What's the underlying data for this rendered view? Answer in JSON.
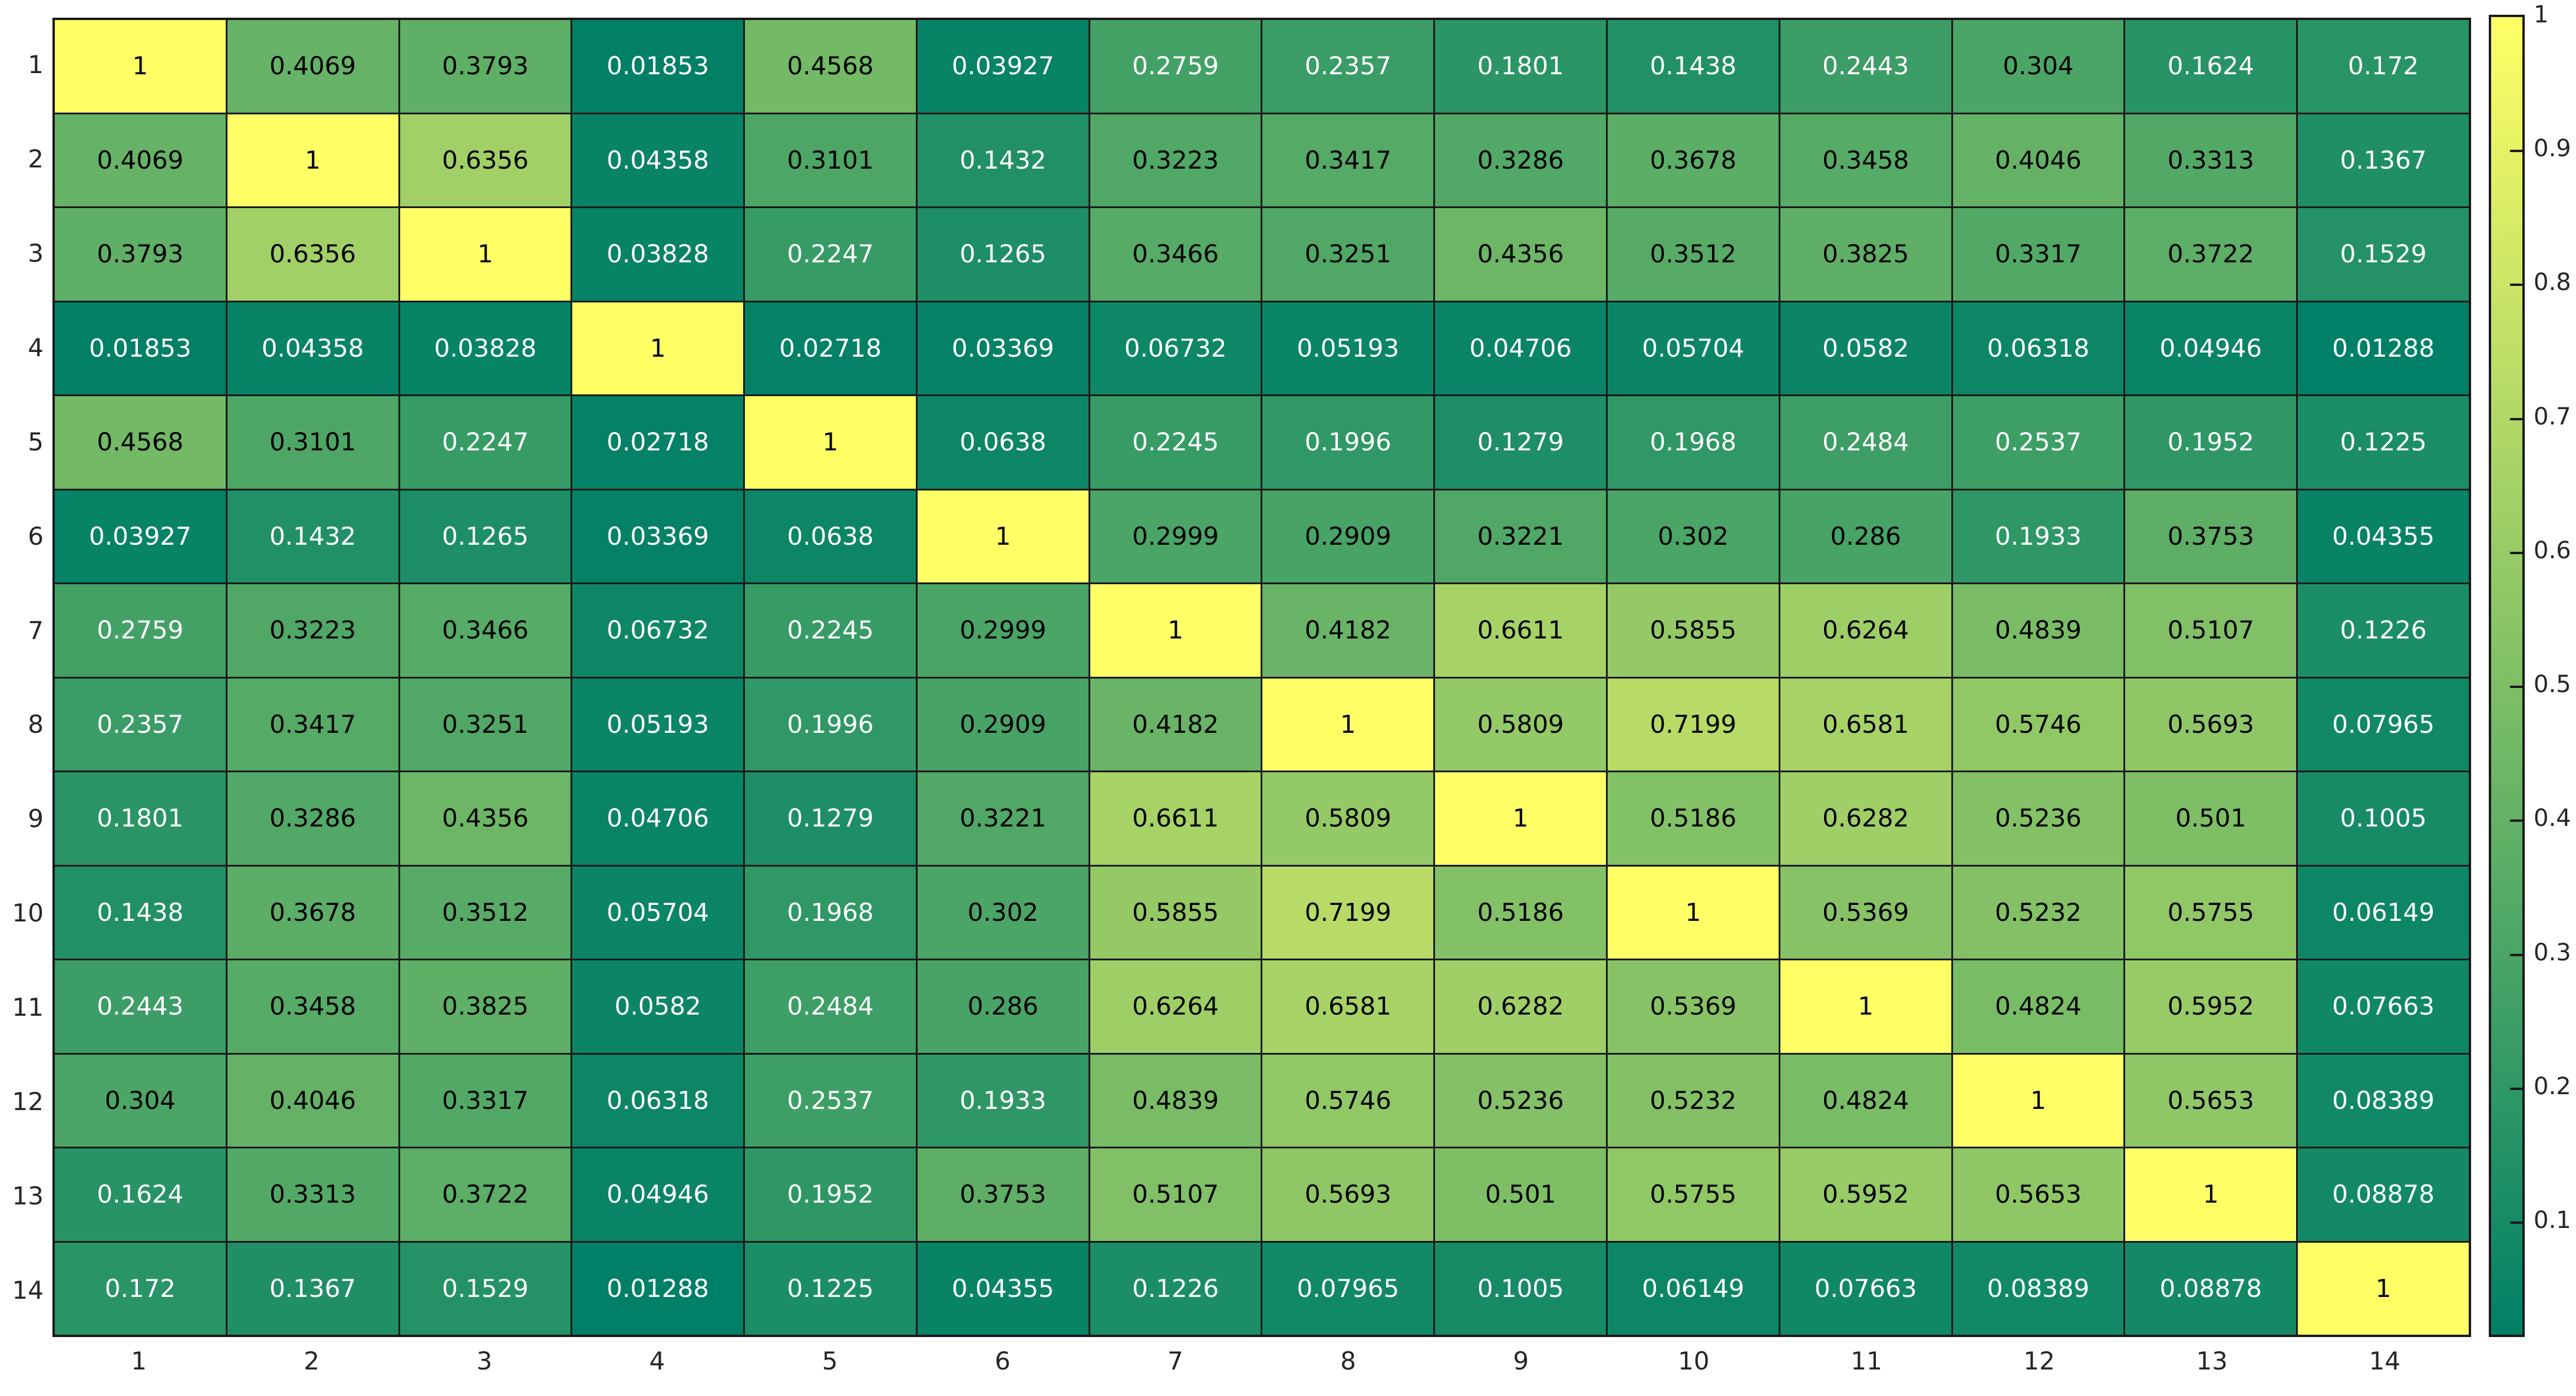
{
  "figure": {
    "background": "#ffffff",
    "grid_line_color": "#1a1a1a",
    "tick_label_color": "#262626",
    "annotation_color_dark": "#000000",
    "annotation_color_light": "#ffffff"
  },
  "chart_data": {
    "type": "heatmap",
    "title": "",
    "xlabel": "",
    "ylabel": "",
    "grid": true,
    "legend_position": "colorbar-right",
    "categories_x": [
      "1",
      "2",
      "3",
      "4",
      "5",
      "6",
      "7",
      "8",
      "9",
      "10",
      "11",
      "12",
      "13",
      "14"
    ],
    "categories_y": [
      "1",
      "2",
      "3",
      "4",
      "5",
      "6",
      "7",
      "8",
      "9",
      "10",
      "11",
      "12",
      "13",
      "14"
    ],
    "matrix": [
      [
        "1",
        "0.4069",
        "0.3793",
        "0.01853",
        "0.4568",
        "0.03927",
        "0.2759",
        "0.2357",
        "0.1801",
        "0.1438",
        "0.2443",
        "0.304",
        "0.1624",
        "0.172"
      ],
      [
        "0.4069",
        "1",
        "0.6356",
        "0.04358",
        "0.3101",
        "0.1432",
        "0.3223",
        "0.3417",
        "0.3286",
        "0.3678",
        "0.3458",
        "0.4046",
        "0.3313",
        "0.1367"
      ],
      [
        "0.3793",
        "0.6356",
        "1",
        "0.03828",
        "0.2247",
        "0.1265",
        "0.3466",
        "0.3251",
        "0.4356",
        "0.3512",
        "0.3825",
        "0.3317",
        "0.3722",
        "0.1529"
      ],
      [
        "0.01853",
        "0.04358",
        "0.03828",
        "1",
        "0.02718",
        "0.03369",
        "0.06732",
        "0.05193",
        "0.04706",
        "0.05704",
        "0.0582",
        "0.06318",
        "0.04946",
        "0.01288"
      ],
      [
        "0.4568",
        "0.3101",
        "0.2247",
        "0.02718",
        "1",
        "0.0638",
        "0.2245",
        "0.1996",
        "0.1279",
        "0.1968",
        "0.2484",
        "0.2537",
        "0.1952",
        "0.1225"
      ],
      [
        "0.03927",
        "0.1432",
        "0.1265",
        "0.03369",
        "0.0638",
        "1",
        "0.2999",
        "0.2909",
        "0.3221",
        "0.302",
        "0.286",
        "0.1933",
        "0.3753",
        "0.04355"
      ],
      [
        "0.2759",
        "0.3223",
        "0.3466",
        "0.06732",
        "0.2245",
        "0.2999",
        "1",
        "0.4182",
        "0.6611",
        "0.5855",
        "0.6264",
        "0.4839",
        "0.5107",
        "0.1226"
      ],
      [
        "0.2357",
        "0.3417",
        "0.3251",
        "0.05193",
        "0.1996",
        "0.2909",
        "0.4182",
        "1",
        "0.5809",
        "0.7199",
        "0.6581",
        "0.5746",
        "0.5693",
        "0.07965"
      ],
      [
        "0.1801",
        "0.3286",
        "0.4356",
        "0.04706",
        "0.1279",
        "0.3221",
        "0.6611",
        "0.5809",
        "1",
        "0.5186",
        "0.6282",
        "0.5236",
        "0.501",
        "0.1005"
      ],
      [
        "0.1438",
        "0.3678",
        "0.3512",
        "0.05704",
        "0.1968",
        "0.302",
        "0.5855",
        "0.7199",
        "0.5186",
        "1",
        "0.5369",
        "0.5232",
        "0.5755",
        "0.06149"
      ],
      [
        "0.2443",
        "0.3458",
        "0.3825",
        "0.0582",
        "0.2484",
        "0.286",
        "0.6264",
        "0.6581",
        "0.6282",
        "0.5369",
        "1",
        "0.4824",
        "0.5952",
        "0.07663"
      ],
      [
        "0.304",
        "0.4046",
        "0.3317",
        "0.06318",
        "0.2537",
        "0.1933",
        "0.4839",
        "0.5746",
        "0.5236",
        "0.5232",
        "0.4824",
        "1",
        "0.5653",
        "0.08389"
      ],
      [
        "0.1624",
        "0.3313",
        "0.3722",
        "0.04946",
        "0.1952",
        "0.3753",
        "0.5107",
        "0.5693",
        "0.501",
        "0.5755",
        "0.5952",
        "0.5653",
        "1",
        "0.08878"
      ],
      [
        "0.172",
        "0.1367",
        "0.1529",
        "0.01288",
        "0.1225",
        "0.04355",
        "0.1226",
        "0.07965",
        "0.1005",
        "0.06149",
        "0.07663",
        "0.08389",
        "0.08878",
        "1"
      ]
    ],
    "colormap": {
      "name": "summer",
      "low_color": "#008066",
      "high_color": "#ffff66",
      "vmin": 0.01288,
      "vmax": 1
    },
    "colorbar": {
      "tick_labels": [
        "1",
        "0.9",
        "0.8",
        "0.7",
        "0.6",
        "0.5",
        "0.4",
        "0.3",
        "0.2",
        "0.1"
      ],
      "tick_values": [
        1,
        0.9,
        0.8,
        0.7,
        0.6,
        0.5,
        0.4,
        0.3,
        0.2,
        0.1
      ]
    }
  }
}
